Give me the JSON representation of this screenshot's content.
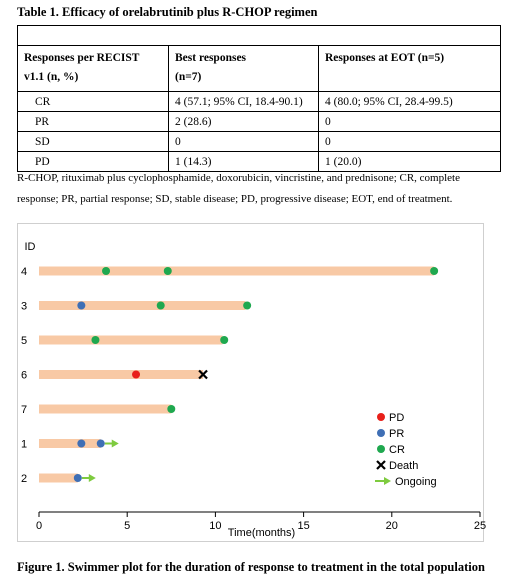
{
  "table": {
    "title": "Table 1. Efficacy of orelabrutinib plus R-CHOP regimen",
    "header": {
      "col1_line1": "Responses per RECIST",
      "col1_line2": "v1.1 (n, %)",
      "col2_line1": "Best responses",
      "col2_line2": "(n=7)",
      "col3": "Responses at EOT (n=5)"
    },
    "rows": [
      {
        "label": "CR",
        "best": "4 (57.1; 95% CI, 18.4-90.1)",
        "eot": "4 (80.0; 95% CI, 28.4-99.5)"
      },
      {
        "label": "PR",
        "best": "2 (28.6)",
        "eot": "0"
      },
      {
        "label": "SD",
        "best": "0",
        "eot": "0"
      },
      {
        "label": "PD",
        "best": "1 (14.3)",
        "eot": "1 (20.0)"
      }
    ],
    "footnote": "R-CHOP, rituximab plus cyclophosphamide, doxorubicin, vincristine, and prednisone; CR, complete response; PR, partial response; SD, stable disease; PD, progressive disease; EOT, end of treatment."
  },
  "chart_data": {
    "type": "swimmer",
    "ylabel": "ID",
    "xlabel": "Time(months)",
    "xlim": [
      0,
      25
    ],
    "xticks": [
      0,
      5,
      10,
      15,
      20,
      25
    ],
    "grid": false,
    "legend_position": "bottom-right",
    "colors": {
      "bar": "#f8c9a5",
      "PD": "#e8201a",
      "PR": "#3f6fb5",
      "CR": "#1fa84f",
      "Death": "#000000",
      "Ongoing": "#7ecb3f"
    },
    "legend": [
      {
        "key": "PD",
        "label": "PD",
        "symbol": "dot"
      },
      {
        "key": "PR",
        "label": "PR",
        "symbol": "dot"
      },
      {
        "key": "CR",
        "label": "CR",
        "symbol": "dot"
      },
      {
        "key": "Death",
        "label": "Death",
        "symbol": "cross"
      },
      {
        "key": "Ongoing",
        "label": "Ongoing",
        "symbol": "arrow"
      }
    ],
    "patients": [
      {
        "id": "4",
        "duration": 22.4,
        "events": [
          {
            "type": "CR",
            "t": 3.8
          },
          {
            "type": "CR",
            "t": 7.3
          },
          {
            "type": "CR",
            "t": 22.4
          }
        ]
      },
      {
        "id": "3",
        "duration": 11.7,
        "events": [
          {
            "type": "PR",
            "t": 2.4
          },
          {
            "type": "CR",
            "t": 6.9
          },
          {
            "type": "CR",
            "t": 11.8
          }
        ]
      },
      {
        "id": "5",
        "duration": 10.4,
        "events": [
          {
            "type": "CR",
            "t": 3.2
          },
          {
            "type": "CR",
            "t": 10.5
          }
        ]
      },
      {
        "id": "6",
        "duration": 9.3,
        "events": [
          {
            "type": "PD",
            "t": 5.5
          },
          {
            "type": "Death",
            "t": 9.3
          }
        ]
      },
      {
        "id": "7",
        "duration": 7.5,
        "events": [
          {
            "type": "CR",
            "t": 7.5
          }
        ]
      },
      {
        "id": "1",
        "duration": 3.5,
        "ongoing": true,
        "events": [
          {
            "type": "PR",
            "t": 2.4
          },
          {
            "type": "PR",
            "t": 3.5
          }
        ]
      },
      {
        "id": "2",
        "duration": 2.2,
        "ongoing": true,
        "events": [
          {
            "type": "PR",
            "t": 2.2
          }
        ]
      }
    ]
  },
  "figure": {
    "caption": "Figure 1. Swimmer plot for the duration of response to treatment in the total population"
  }
}
